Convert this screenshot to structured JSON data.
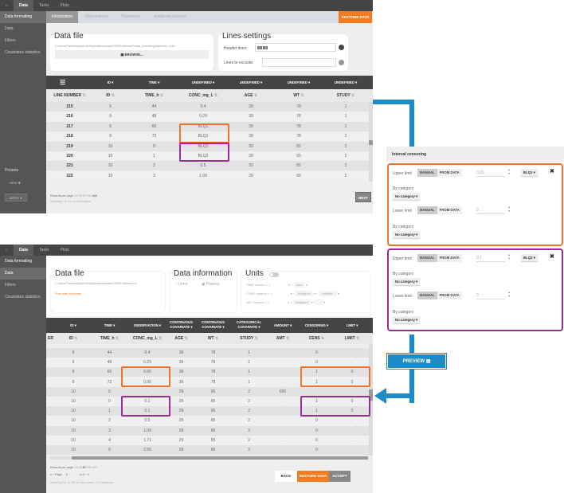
{
  "nav": {
    "home": "home-icon",
    "tabs": [
      "Data",
      "Tasks",
      "Plots"
    ]
  },
  "top": {
    "sidebar": [
      "Data formatting",
      "Data",
      "Filters",
      "Covariates statistics"
    ],
    "presets": {
      "title": "Presets",
      "new": "NEW",
      "apply": "APPLY"
    },
    "subtabs": [
      "Initialization",
      "Observations",
      "Treatments",
      "Additional columns"
    ],
    "restore": "RESTORE DATA",
    "datafile": {
      "title": "Data file",
      "path": "C:/Users/FranekHa/jevic/Soft/pkanalix/pkanalix2024R1/demos/0.data_formatting/data/units_multi...",
      "browse": "BROWSE..."
    },
    "lines": {
      "title": "Lines settings",
      "header_label": "Header lines:",
      "header_tags": [
        "1",
        "2"
      ],
      "exclude_label": "Lines to exclude:",
      "exclude_value": ""
    },
    "types": [
      "ID",
      "TIME",
      "UNDEFINED",
      "UNDEFINED",
      "UNDEFINED",
      "UNDEFINED"
    ],
    "columns": [
      "LINE NUMBER",
      "ID",
      "TIME_h",
      "CONC_mg_L",
      "AGE",
      "WT",
      "STUDY"
    ],
    "rows": [
      [
        "215",
        "9",
        "44",
        "0.4",
        "39",
        "78",
        "1"
      ],
      [
        "216",
        "9",
        "48",
        "0.29",
        "39",
        "78",
        "1"
      ],
      [
        "217",
        "9",
        "60",
        "BLQ1",
        "39",
        "78",
        "1"
      ],
      [
        "218",
        "9",
        "72",
        "BLQ1",
        "39",
        "78",
        "1"
      ],
      [
        "219",
        "10",
        "0",
        "BLQ2",
        "29",
        "65",
        "2"
      ],
      [
        "220",
        "10",
        "1",
        "BLQ2",
        "29",
        "65",
        "2"
      ],
      [
        "221",
        "10",
        "2",
        "0.5",
        "29",
        "65",
        "2"
      ],
      [
        "222",
        "10",
        "3",
        "1.09",
        "29",
        "65",
        "2"
      ]
    ],
    "records_label": "Records per page:",
    "records_options": [
      "10",
      "25",
      "50",
      "100",
      "434"
    ],
    "showing": "Showing 1 to 434 of 434 entries",
    "next": "NEXT"
  },
  "bottom": {
    "sidebar": [
      "Data formatting",
      "Data",
      "Filters",
      "Covariates statistics"
    ],
    "datafile": {
      "title": "Data file",
      "path": "C:/Users/FranekHa/jevic/Soft/pkanalix/pkanalix2024R1/demos/0.d...",
      "source": "From data formatting"
    },
    "info": {
      "title": "Data information",
      "options": [
        "Urine",
        "Plasma"
      ],
      "selected": "Plasma"
    },
    "units": {
      "title": "Units",
      "rows": [
        {
          "name": "TIME",
          "col": "column",
          "mult": "1",
          "unit1": "hour"
        },
        {
          "name": "CONC",
          "col": "column",
          "mult": "1",
          "unit1": "milligram",
          "unit2": "milliliter"
        },
        {
          "name": "AMT",
          "col": "column",
          "mult": "1",
          "unit1": "milligram",
          "unit2": ""
        }
      ]
    },
    "types": [
      "ID",
      "TIME",
      "OBSERVATION",
      "CONTINUOUS COVARIATE",
      "CONTINUOUS COVARIATE",
      "CATEGORICAL COVARIATE",
      "AMOUNT",
      "CENSORING",
      "LIMIT"
    ],
    "columns": [
      "ID",
      "TIME_h",
      "CONC_mg_L",
      "AGE",
      "WT",
      "STUDY",
      "AMT",
      "CENS",
      "LIMIT"
    ],
    "partial_col": "ER",
    "rows": [
      [
        "9",
        "44",
        "0.4",
        "39",
        "78",
        "1",
        ".",
        "0",
        "."
      ],
      [
        "9",
        "48",
        "0.29",
        "39",
        "78",
        "1",
        ".",
        "0",
        "."
      ],
      [
        "9",
        "60",
        "0.06",
        "39",
        "78",
        "1",
        ".",
        "1",
        "0"
      ],
      [
        "9",
        "72",
        "0.06",
        "39",
        "78",
        "1",
        ".",
        "1",
        "0"
      ],
      [
        "10",
        "0",
        ".",
        "29",
        "65",
        "2",
        "600",
        ".",
        "."
      ],
      [
        "10",
        "0",
        "0.1",
        "29",
        "65",
        "2",
        ".",
        "1",
        "0"
      ],
      [
        "10",
        "1",
        "0.1",
        "29",
        "65",
        "2",
        ".",
        "1",
        "0"
      ],
      [
        "10",
        "2",
        "0.5",
        "29",
        "65",
        "2",
        ".",
        "0",
        "."
      ],
      [
        "10",
        "3",
        "1.09",
        "29",
        "65",
        "2",
        ".",
        "0",
        "."
      ],
      [
        "10",
        "4",
        "1.71",
        "29",
        "65",
        "2",
        ".",
        "0",
        "."
      ],
      [
        "10",
        "5",
        "2.55",
        "29",
        "65",
        "2",
        ".",
        "0",
        "."
      ]
    ],
    "records_label": "Records per page:",
    "records_options": [
      "10",
      "25",
      "50",
      "100",
      "450"
    ],
    "page_label": "Page",
    "page_value": "5",
    "page_of": "of 9",
    "showing": "Showing 201 to 250 of 450 entries - 10 individuals",
    "back": "BACK",
    "restore": "RESTORE DATA",
    "accept": "ACCEPT"
  },
  "censoring": {
    "title": "Interval censoring",
    "blocks": [
      {
        "upper_label": "Upper limit",
        "manual": "MANUAL",
        "from_data": "FROM DATA",
        "upper_value": "0.06",
        "tag": "BLQ1",
        "by_category": "By category",
        "category": "No category",
        "lower_label": "Lower limit",
        "lower_value": "0"
      },
      {
        "upper_label": "Upper limit",
        "manual": "MANUAL",
        "from_data": "FROM DATA",
        "upper_value": "0.1",
        "tag": "BLQ2",
        "by_category": "By category",
        "category": "No category",
        "lower_label": "Lower limit",
        "lower_value": "0"
      }
    ]
  },
  "preview": "PREVIEW",
  "colors": {
    "orange": "#ee7330",
    "purple": "#9b2b96",
    "blue": "#1d8bc7",
    "restore": "#f47b20"
  }
}
